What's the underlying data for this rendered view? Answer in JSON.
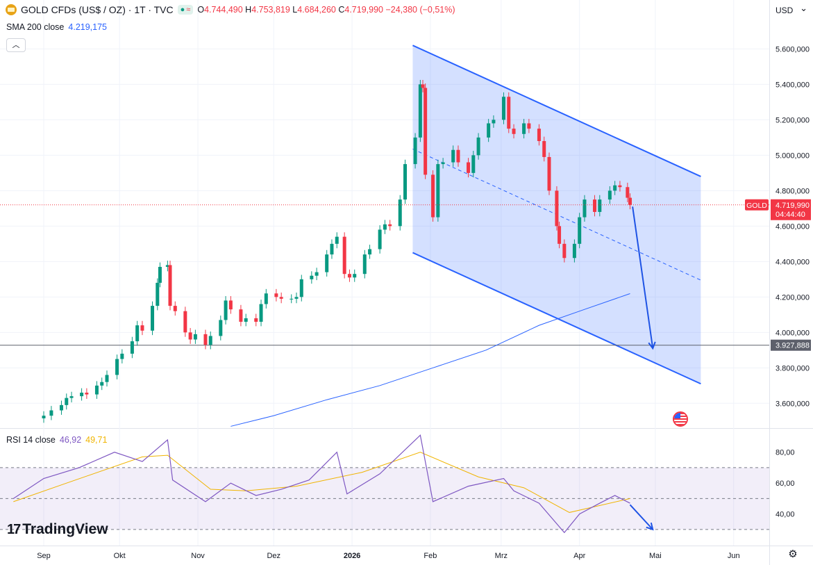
{
  "legend": {
    "symbol": "GOLD CFDs (US$ / OZ) · 1T · TVC",
    "open_label": "O",
    "open": "4.744,490",
    "high_label": "H",
    "high": "4.753,819",
    "low_label": "L",
    "low": "4.684,260",
    "close_label": "C",
    "close": "4.719,990",
    "change": "−24,380 (−0,51%)"
  },
  "sma": {
    "label": "SMA 200 close",
    "value": "4.219,175"
  },
  "rsi": {
    "label": "RSI 14 close",
    "value": "46,92",
    "ma_value": "49,71"
  },
  "currency": "USD",
  "brand": "TradingView",
  "price_tag": {
    "name": "GOLD",
    "price": "4.719,990",
    "countdown": "04:44:40"
  },
  "level_tag": "3.927,888",
  "colors": {
    "up": "#089981",
    "down": "#f23645",
    "accent": "#2962ff",
    "rsi": "#7e57c2",
    "rsi_ma": "#f0b400"
  },
  "chart_data": {
    "type": "candlestick",
    "x_axis": {
      "months": [
        {
          "label": "Sep",
          "date": "2025-09-01"
        },
        {
          "label": "Okt",
          "date": "2025-10-01"
        },
        {
          "label": "Nov",
          "date": "2025-11-01"
        },
        {
          "label": "Dez",
          "date": "2025-12-01"
        },
        {
          "label": "2026",
          "date": "2026-01-01"
        },
        {
          "label": "Feb",
          "date": "2026-02-01"
        },
        {
          "label": "Mrz",
          "date": "2026-03-01"
        },
        {
          "label": "Apr",
          "date": "2026-04-01"
        },
        {
          "label": "Mai",
          "date": "2026-05-01"
        },
        {
          "label": "Jun",
          "date": "2026-06-01"
        }
      ]
    },
    "price_axis": {
      "ticks": [
        3600000,
        3800000,
        4000000,
        4200000,
        4400000,
        4600000,
        4800000,
        5000000,
        5200000,
        5400000,
        5600000
      ],
      "tick_labels": [
        "3.600,000",
        "3.800,000",
        "4.000,000",
        "4.200,000",
        "4.400,000",
        "4.600,000",
        "4.800,000",
        "5.000,000",
        "5.200,000",
        "5.400,000",
        "5.600,000"
      ],
      "range": [
        3460000,
        5680000
      ]
    },
    "rsi_axis": {
      "ticks": [
        40,
        60,
        80
      ],
      "range": [
        25,
        92
      ],
      "bands": [
        30,
        50,
        70
      ]
    },
    "candles": [
      {
        "date": "2025-09-01",
        "c": 3530
      },
      {
        "date": "2025-09-04",
        "c": 3560
      },
      {
        "date": "2025-09-08",
        "c": 3590
      },
      {
        "date": "2025-09-10",
        "c": 3630
      },
      {
        "date": "2025-09-12",
        "c": 3640
      },
      {
        "date": "2025-09-16",
        "c": 3660
      },
      {
        "date": "2025-09-18",
        "c": 3650
      },
      {
        "date": "2025-09-22",
        "c": 3700
      },
      {
        "date": "2025-09-24",
        "c": 3720
      },
      {
        "date": "2025-09-26",
        "c": 3760
      },
      {
        "date": "2025-09-30",
        "c": 3850
      },
      {
        "date": "2025-10-02",
        "c": 3880
      },
      {
        "date": "2025-10-06",
        "c": 3950
      },
      {
        "date": "2025-10-08",
        "c": 4040
      },
      {
        "date": "2025-10-10",
        "c": 4010
      },
      {
        "date": "2025-10-14",
        "c": 4150
      },
      {
        "date": "2025-10-16",
        "c": 4280
      },
      {
        "date": "2025-10-17",
        "c": 4370
      },
      {
        "date": "2025-10-20",
        "c": 4380
      },
      {
        "date": "2025-10-21",
        "c": 4150
      },
      {
        "date": "2025-10-23",
        "c": 4120
      },
      {
        "date": "2025-10-27",
        "c": 4000
      },
      {
        "date": "2025-10-29",
        "c": 3960
      },
      {
        "date": "2025-10-31",
        "c": 3990
      },
      {
        "date": "2025-11-04",
        "c": 3930
      },
      {
        "date": "2025-11-06",
        "c": 3980
      },
      {
        "date": "2025-11-10",
        "c": 4070
      },
      {
        "date": "2025-11-12",
        "c": 4180
      },
      {
        "date": "2025-11-14",
        "c": 4130
      },
      {
        "date": "2025-11-18",
        "c": 4060
      },
      {
        "date": "2025-11-20",
        "c": 4080
      },
      {
        "date": "2025-11-24",
        "c": 4060
      },
      {
        "date": "2025-11-26",
        "c": 4160
      },
      {
        "date": "2025-11-28",
        "c": 4220
      },
      {
        "date": "2025-12-02",
        "c": 4200
      },
      {
        "date": "2025-12-04",
        "c": 4190
      },
      {
        "date": "2025-12-08",
        "c": 4190
      },
      {
        "date": "2025-12-10",
        "c": 4200
      },
      {
        "date": "2025-12-12",
        "c": 4300
      },
      {
        "date": "2025-12-16",
        "c": 4320
      },
      {
        "date": "2025-12-18",
        "c": 4340
      },
      {
        "date": "2025-12-22",
        "c": 4440
      },
      {
        "date": "2025-12-24",
        "c": 4500
      },
      {
        "date": "2025-12-26",
        "c": 4540
      },
      {
        "date": "2025-12-29",
        "c": 4330
      },
      {
        "date": "2025-12-31",
        "c": 4310
      },
      {
        "date": "2026-01-02",
        "c": 4330
      },
      {
        "date": "2026-01-06",
        "c": 4440
      },
      {
        "date": "2026-01-08",
        "c": 4470
      },
      {
        "date": "2026-01-12",
        "c": 4580
      },
      {
        "date": "2026-01-14",
        "c": 4610
      },
      {
        "date": "2026-01-16",
        "c": 4600
      },
      {
        "date": "2026-01-20",
        "c": 4750
      },
      {
        "date": "2026-01-22",
        "c": 4950
      },
      {
        "date": "2026-01-26",
        "c": 5100
      },
      {
        "date": "2026-01-28",
        "c": 5400
      },
      {
        "date": "2026-01-29",
        "c": 5380
      },
      {
        "date": "2026-01-30",
        "c": 4890
      },
      {
        "date": "2026-02-02",
        "c": 4650
      },
      {
        "date": "2026-02-04",
        "c": 4950
      },
      {
        "date": "2026-02-06",
        "c": 4960
      },
      {
        "date": "2026-02-10",
        "c": 5030
      },
      {
        "date": "2026-02-12",
        "c": 4960
      },
      {
        "date": "2026-02-16",
        "c": 4900
      },
      {
        "date": "2026-02-18",
        "c": 5000
      },
      {
        "date": "2026-02-20",
        "c": 5100
      },
      {
        "date": "2026-02-24",
        "c": 5180
      },
      {
        "date": "2026-02-26",
        "c": 5200
      },
      {
        "date": "2026-03-02",
        "c": 5330
      },
      {
        "date": "2026-03-04",
        "c": 5150
      },
      {
        "date": "2026-03-06",
        "c": 5120
      },
      {
        "date": "2026-03-10",
        "c": 5180
      },
      {
        "date": "2026-03-12",
        "c": 5150
      },
      {
        "date": "2026-03-16",
        "c": 5080
      },
      {
        "date": "2026-03-18",
        "c": 4990
      },
      {
        "date": "2026-03-20",
        "c": 4800
      },
      {
        "date": "2026-03-23",
        "c": 4600
      },
      {
        "date": "2026-03-24",
        "c": 4500
      },
      {
        "date": "2026-03-26",
        "c": 4420
      },
      {
        "date": "2026-03-30",
        "c": 4500
      },
      {
        "date": "2026-04-01",
        "c": 4650
      },
      {
        "date": "2026-04-03",
        "c": 4750
      },
      {
        "date": "2026-04-07",
        "c": 4680
      },
      {
        "date": "2026-04-09",
        "c": 4750
      },
      {
        "date": "2026-04-13",
        "c": 4800
      },
      {
        "date": "2026-04-15",
        "c": 4830
      },
      {
        "date": "2026-04-17",
        "c": 4820
      },
      {
        "date": "2026-04-20",
        "c": 4760
      },
      {
        "date": "2026-04-21",
        "c": 4720
      }
    ],
    "sma200": [
      {
        "date": "2025-11-14",
        "v": 3470
      },
      {
        "date": "2025-12-01",
        "v": 3530
      },
      {
        "date": "2025-12-22",
        "v": 3620
      },
      {
        "date": "2026-01-12",
        "v": 3700
      },
      {
        "date": "2026-02-02",
        "v": 3800
      },
      {
        "date": "2026-02-23",
        "v": 3900
      },
      {
        "date": "2026-03-16",
        "v": 4040
      },
      {
        "date": "2026-04-03",
        "v": 4130
      },
      {
        "date": "2026-04-21",
        "v": 4219
      }
    ],
    "rsi_line": [
      {
        "date": "2025-08-20",
        "v": 50
      },
      {
        "date": "2025-09-01",
        "v": 63
      },
      {
        "date": "2025-09-15",
        "v": 70
      },
      {
        "date": "2025-09-29",
        "v": 80
      },
      {
        "date": "2025-10-10",
        "v": 74
      },
      {
        "date": "2025-10-20",
        "v": 88
      },
      {
        "date": "2025-10-22",
        "v": 62
      },
      {
        "date": "2025-11-04",
        "v": 48
      },
      {
        "date": "2025-11-14",
        "v": 60
      },
      {
        "date": "2025-11-24",
        "v": 52
      },
      {
        "date": "2025-12-04",
        "v": 56
      },
      {
        "date": "2025-12-15",
        "v": 62
      },
      {
        "date": "2025-12-26",
        "v": 80
      },
      {
        "date": "2025-12-30",
        "v": 53
      },
      {
        "date": "2026-01-12",
        "v": 66
      },
      {
        "date": "2026-01-28",
        "v": 91
      },
      {
        "date": "2026-02-02",
        "v": 48
      },
      {
        "date": "2026-02-16",
        "v": 58
      },
      {
        "date": "2026-03-02",
        "v": 63
      },
      {
        "date": "2026-03-06",
        "v": 55
      },
      {
        "date": "2026-03-16",
        "v": 47
      },
      {
        "date": "2026-03-26",
        "v": 28
      },
      {
        "date": "2026-04-01",
        "v": 40
      },
      {
        "date": "2026-04-09",
        "v": 47
      },
      {
        "date": "2026-04-15",
        "v": 52
      },
      {
        "date": "2026-04-21",
        "v": 47
      }
    ],
    "rsi_ma": [
      {
        "date": "2025-08-20",
        "v": 48
      },
      {
        "date": "2025-09-10",
        "v": 60
      },
      {
        "date": "2025-10-10",
        "v": 77
      },
      {
        "date": "2025-10-20",
        "v": 78
      },
      {
        "date": "2025-11-06",
        "v": 56
      },
      {
        "date": "2025-11-20",
        "v": 55
      },
      {
        "date": "2025-12-10",
        "v": 58
      },
      {
        "date": "2026-01-05",
        "v": 67
      },
      {
        "date": "2026-01-28",
        "v": 80
      },
      {
        "date": "2026-02-20",
        "v": 64
      },
      {
        "date": "2026-03-10",
        "v": 57
      },
      {
        "date": "2026-03-28",
        "v": 41
      },
      {
        "date": "2026-04-05",
        "v": 44
      },
      {
        "date": "2026-04-21",
        "v": 50
      }
    ],
    "annotations": {
      "channel": {
        "upper": [
          {
            "date": "2026-01-25",
            "v": 5620
          },
          {
            "date": "2026-05-19",
            "v": 4880
          }
        ],
        "lower": [
          {
            "date": "2026-01-25",
            "v": 4450
          },
          {
            "date": "2026-05-19",
            "v": 3710
          }
        ],
        "mid": [
          {
            "date": "2026-01-25",
            "v": 5035
          },
          {
            "date": "2026-05-19",
            "v": 4295
          }
        ]
      },
      "horizontal_level": 3927.888,
      "forecast_arrow": [
        {
          "date": "2026-04-22",
          "v": 4710
        },
        {
          "date": "2026-04-30",
          "v": 3910
        }
      ],
      "rsi_arrow": [
        {
          "date": "2026-04-21",
          "v": 46
        },
        {
          "date": "2026-04-30",
          "v": 30
        }
      ]
    }
  }
}
